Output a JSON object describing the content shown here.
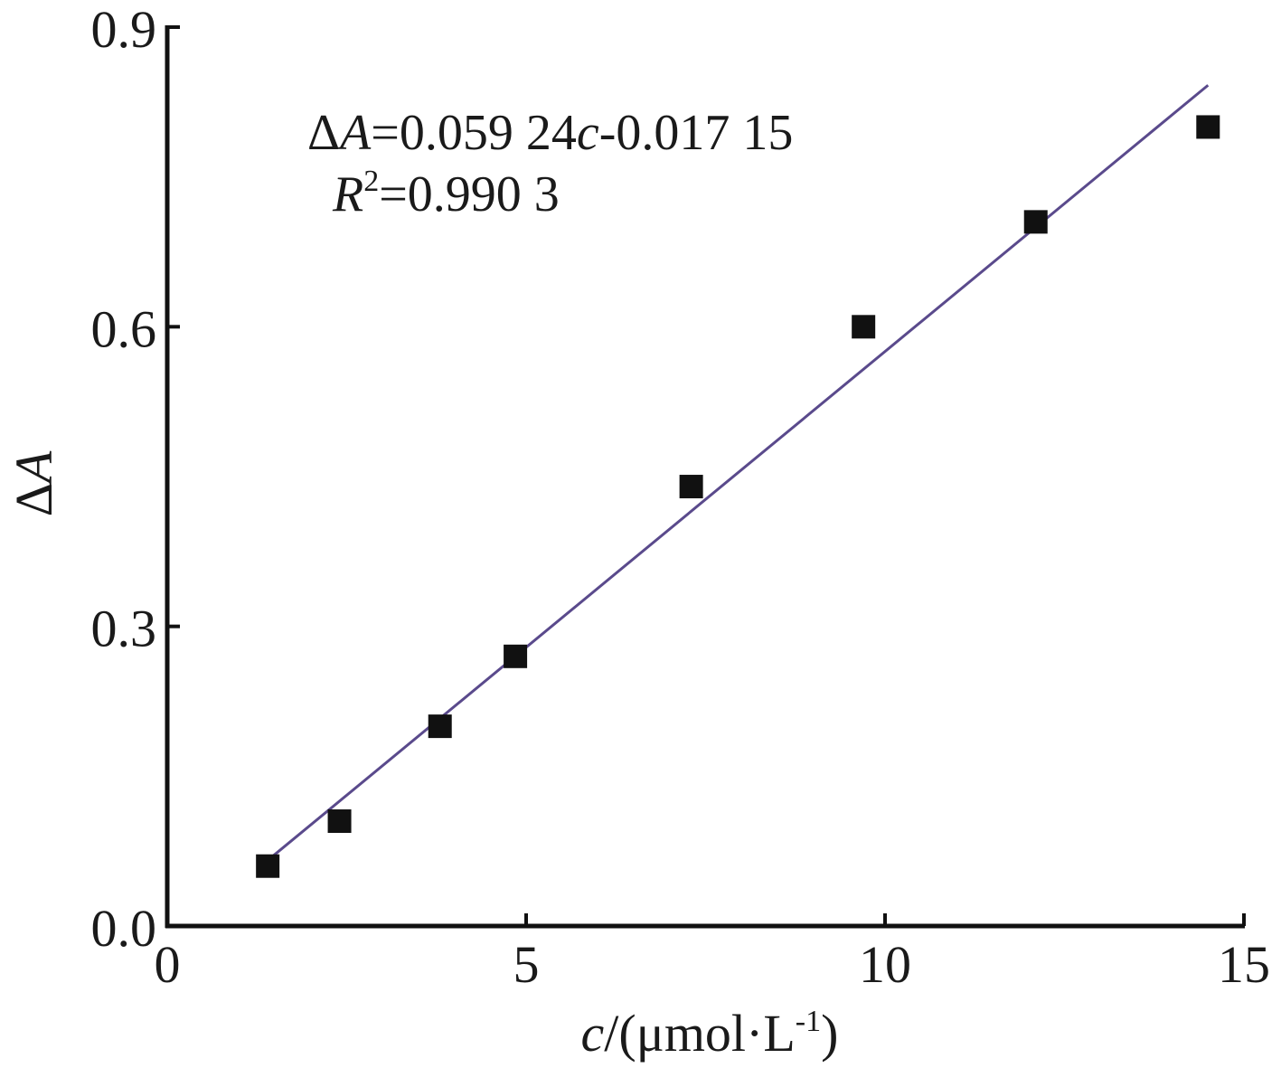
{
  "chart_data": {
    "type": "scatter",
    "x": [
      1.4,
      2.4,
      3.8,
      4.85,
      7.3,
      9.7,
      12.1,
      14.5
    ],
    "y": [
      0.06,
      0.105,
      0.2,
      0.27,
      0.44,
      0.6,
      0.705,
      0.8
    ],
    "fit_line": {
      "slope": 0.05924,
      "intercept": -0.01715,
      "x_range": [
        1.4,
        14.5
      ],
      "color": "#5a4a8c"
    },
    "marker_color": "#111111",
    "xlim": [
      0,
      15
    ],
    "ylim": [
      0,
      0.9
    ],
    "xticks": [
      "0",
      "5",
      "10",
      "15"
    ],
    "xtick_values": [
      0,
      5,
      10,
      15
    ],
    "yticks": [
      "0.0",
      "0.3",
      "0.6",
      "0.9"
    ],
    "ytick_values": [
      0,
      0.3,
      0.6,
      0.9
    ],
    "xlabel": {
      "var": "c",
      "pre": "/(μmol·L",
      "sup": "-1",
      "post": ")"
    },
    "ylabel": {
      "delta": "Δ",
      "var": "A"
    },
    "annotations": {
      "equation": {
        "delta": "Δ",
        "a": "A",
        "eq1": "=0.059 24",
        "c": "c",
        "eq2": "-0.017 15"
      },
      "r2": {
        "r": "R",
        "sup": "2",
        "value": "=0.990 3"
      }
    },
    "grid": false,
    "legend": "none"
  }
}
